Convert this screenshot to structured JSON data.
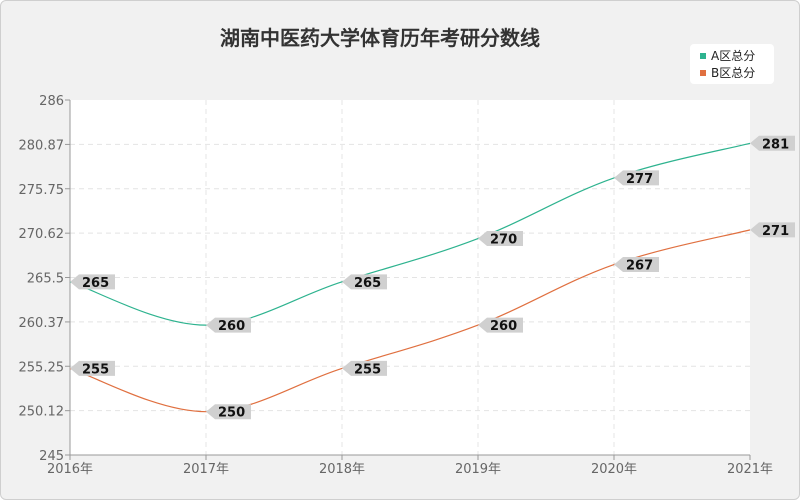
{
  "chart_data": {
    "type": "line",
    "title": "湖南中医药大学体育历年考研分数线",
    "xlabel": "",
    "ylabel": "",
    "categories": [
      "2016年",
      "2017年",
      "2018年",
      "2019年",
      "2020年",
      "2021年"
    ],
    "yticks": [
      "245",
      "250.12",
      "255.25",
      "260.37",
      "265.5",
      "270.62",
      "275.75",
      "280.87",
      "286"
    ],
    "ylim": [
      245,
      286
    ],
    "grid": true,
    "legend_position": "top-right",
    "series": [
      {
        "name": "A区总分",
        "color": "#2eb38f",
        "values": [
          265,
          260,
          265,
          270,
          277,
          281
        ]
      },
      {
        "name": "B区总分",
        "color": "#e07040",
        "values": [
          255,
          250,
          255,
          260,
          267,
          271
        ]
      }
    ]
  }
}
